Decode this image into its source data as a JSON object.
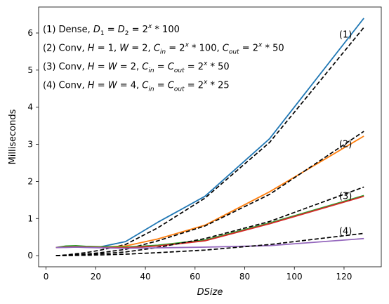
{
  "chart_data": {
    "type": "line",
    "xlabel": "DSize",
    "ylabel": "Milliseconds",
    "xlim": [
      -3,
      135
    ],
    "ylim": [
      -0.3,
      6.7
    ],
    "xticks": [
      0,
      20,
      40,
      60,
      80,
      100,
      120
    ],
    "yticks": [
      0,
      1,
      2,
      3,
      4,
      5,
      6
    ],
    "grid": false,
    "annotations": [
      {
        "lines": [
          {
            "t": "(1) Dense, "
          },
          {
            "t": "D",
            "i": true
          },
          {
            "t": "1",
            "sub": true
          },
          {
            "t": " = "
          },
          {
            "t": "D",
            "i": true
          },
          {
            "t": "2",
            "sub": true
          },
          {
            "t": " = 2"
          },
          {
            "t": "x",
            "i": true,
            "sup": true
          },
          {
            "t": " * 100"
          }
        ]
      },
      {
        "lines": [
          {
            "t": "(2) Conv, "
          },
          {
            "t": "H",
            "i": true
          },
          {
            "t": " = 1, "
          },
          {
            "t": "W",
            "i": true
          },
          {
            "t": " = 2, "
          },
          {
            "t": "C",
            "i": true
          },
          {
            "t": "in",
            "sub": true,
            "i": true
          },
          {
            "t": " = 2"
          },
          {
            "t": "x",
            "i": true,
            "sup": true
          },
          {
            "t": " * 100, "
          },
          {
            "t": "C",
            "i": true
          },
          {
            "t": "out",
            "sub": true,
            "i": true
          },
          {
            "t": " = 2"
          },
          {
            "t": "x",
            "i": true,
            "sup": true
          },
          {
            "t": " * 50"
          }
        ]
      },
      {
        "lines": [
          {
            "t": "(3) Conv, "
          },
          {
            "t": "H",
            "i": true
          },
          {
            "t": " = "
          },
          {
            "t": "W",
            "i": true
          },
          {
            "t": " = 2, "
          },
          {
            "t": "C",
            "i": true
          },
          {
            "t": "in",
            "sub": true,
            "i": true
          },
          {
            "t": " = "
          },
          {
            "t": "C",
            "i": true
          },
          {
            "t": "out",
            "sub": true,
            "i": true
          },
          {
            "t": " = 2"
          },
          {
            "t": "x",
            "i": true,
            "sup": true
          },
          {
            "t": " * 50"
          }
        ]
      },
      {
        "lines": [
          {
            "t": "(4) Conv, "
          },
          {
            "t": "H",
            "i": true
          },
          {
            "t": " = "
          },
          {
            "t": "W",
            "i": true
          },
          {
            "t": " = 4, "
          },
          {
            "t": "C",
            "i": true
          },
          {
            "t": "in",
            "sub": true,
            "i": true
          },
          {
            "t": " = "
          },
          {
            "t": "C",
            "i": true
          },
          {
            "t": "out",
            "sub": true,
            "i": true
          },
          {
            "t": " = 2"
          },
          {
            "t": "x",
            "i": true,
            "sup": true
          },
          {
            "t": " * 25"
          }
        ]
      }
    ],
    "series": [
      {
        "label": "(1)",
        "color": "#1f77b4",
        "style": "solid",
        "x": [
          4,
          8,
          12,
          16,
          22,
          32,
          45,
          64,
          90,
          128
        ],
        "y": [
          0.22,
          0.23,
          0.24,
          0.23,
          0.24,
          0.38,
          0.9,
          1.6,
          3.15,
          6.4
        ],
        "label_at": [
          118,
          5.95
        ]
      },
      {
        "label": "",
        "color": "#000000",
        "style": "dashed",
        "x": [
          4,
          8,
          16,
          22,
          32,
          45,
          64,
          90,
          128
        ],
        "y": [
          0.0,
          0.02,
          0.08,
          0.15,
          0.3,
          0.75,
          1.55,
          3.05,
          6.15
        ]
      },
      {
        "label": "(2)",
        "color": "#ff7f0e",
        "style": "solid",
        "x": [
          4,
          8,
          12,
          16,
          22,
          32,
          45,
          64,
          90,
          128
        ],
        "y": [
          0.22,
          0.24,
          0.25,
          0.24,
          0.23,
          0.26,
          0.45,
          0.82,
          1.72,
          3.22
        ],
        "label_at": [
          118,
          3.0
        ]
      },
      {
        "label": "",
        "color": "#000000",
        "style": "dashed",
        "x": [
          4,
          8,
          16,
          22,
          32,
          45,
          64,
          90,
          128
        ],
        "y": [
          0.0,
          0.01,
          0.04,
          0.08,
          0.17,
          0.4,
          0.8,
          1.65,
          3.35
        ]
      },
      {
        "label": "",
        "color": "#2ca02c",
        "style": "solid",
        "x": [
          4,
          8,
          12,
          16,
          22,
          32,
          45,
          64,
          90,
          128
        ],
        "y": [
          0.22,
          0.26,
          0.27,
          0.25,
          0.24,
          0.23,
          0.28,
          0.42,
          0.88,
          1.62
        ]
      },
      {
        "label": "(3)",
        "color": "#d62728",
        "style": "solid",
        "x": [
          4,
          8,
          12,
          16,
          22,
          32,
          45,
          64,
          90,
          128
        ],
        "y": [
          0.22,
          0.23,
          0.24,
          0.23,
          0.22,
          0.21,
          0.26,
          0.4,
          0.86,
          1.6
        ],
        "label_at": [
          118,
          1.6
        ]
      },
      {
        "label": "",
        "color": "#000000",
        "style": "dashed",
        "x": [
          4,
          8,
          16,
          22,
          32,
          45,
          64,
          90,
          128
        ],
        "y": [
          0.0,
          0.005,
          0.02,
          0.05,
          0.1,
          0.22,
          0.46,
          0.92,
          1.85
        ]
      },
      {
        "label": "(4)",
        "color": "#9467bd",
        "style": "solid",
        "x": [
          4,
          8,
          12,
          16,
          22,
          32,
          45,
          64,
          90,
          128
        ],
        "y": [
          0.22,
          0.22,
          0.23,
          0.22,
          0.21,
          0.2,
          0.21,
          0.23,
          0.27,
          0.46
        ],
        "label_at": [
          118,
          0.66
        ]
      },
      {
        "label": "",
        "color": "#000000",
        "style": "dashed",
        "x": [
          4,
          8,
          16,
          22,
          32,
          45,
          64,
          90,
          128
        ],
        "y": [
          0.0,
          0.003,
          0.01,
          0.02,
          0.04,
          0.08,
          0.15,
          0.3,
          0.6
        ]
      }
    ]
  }
}
